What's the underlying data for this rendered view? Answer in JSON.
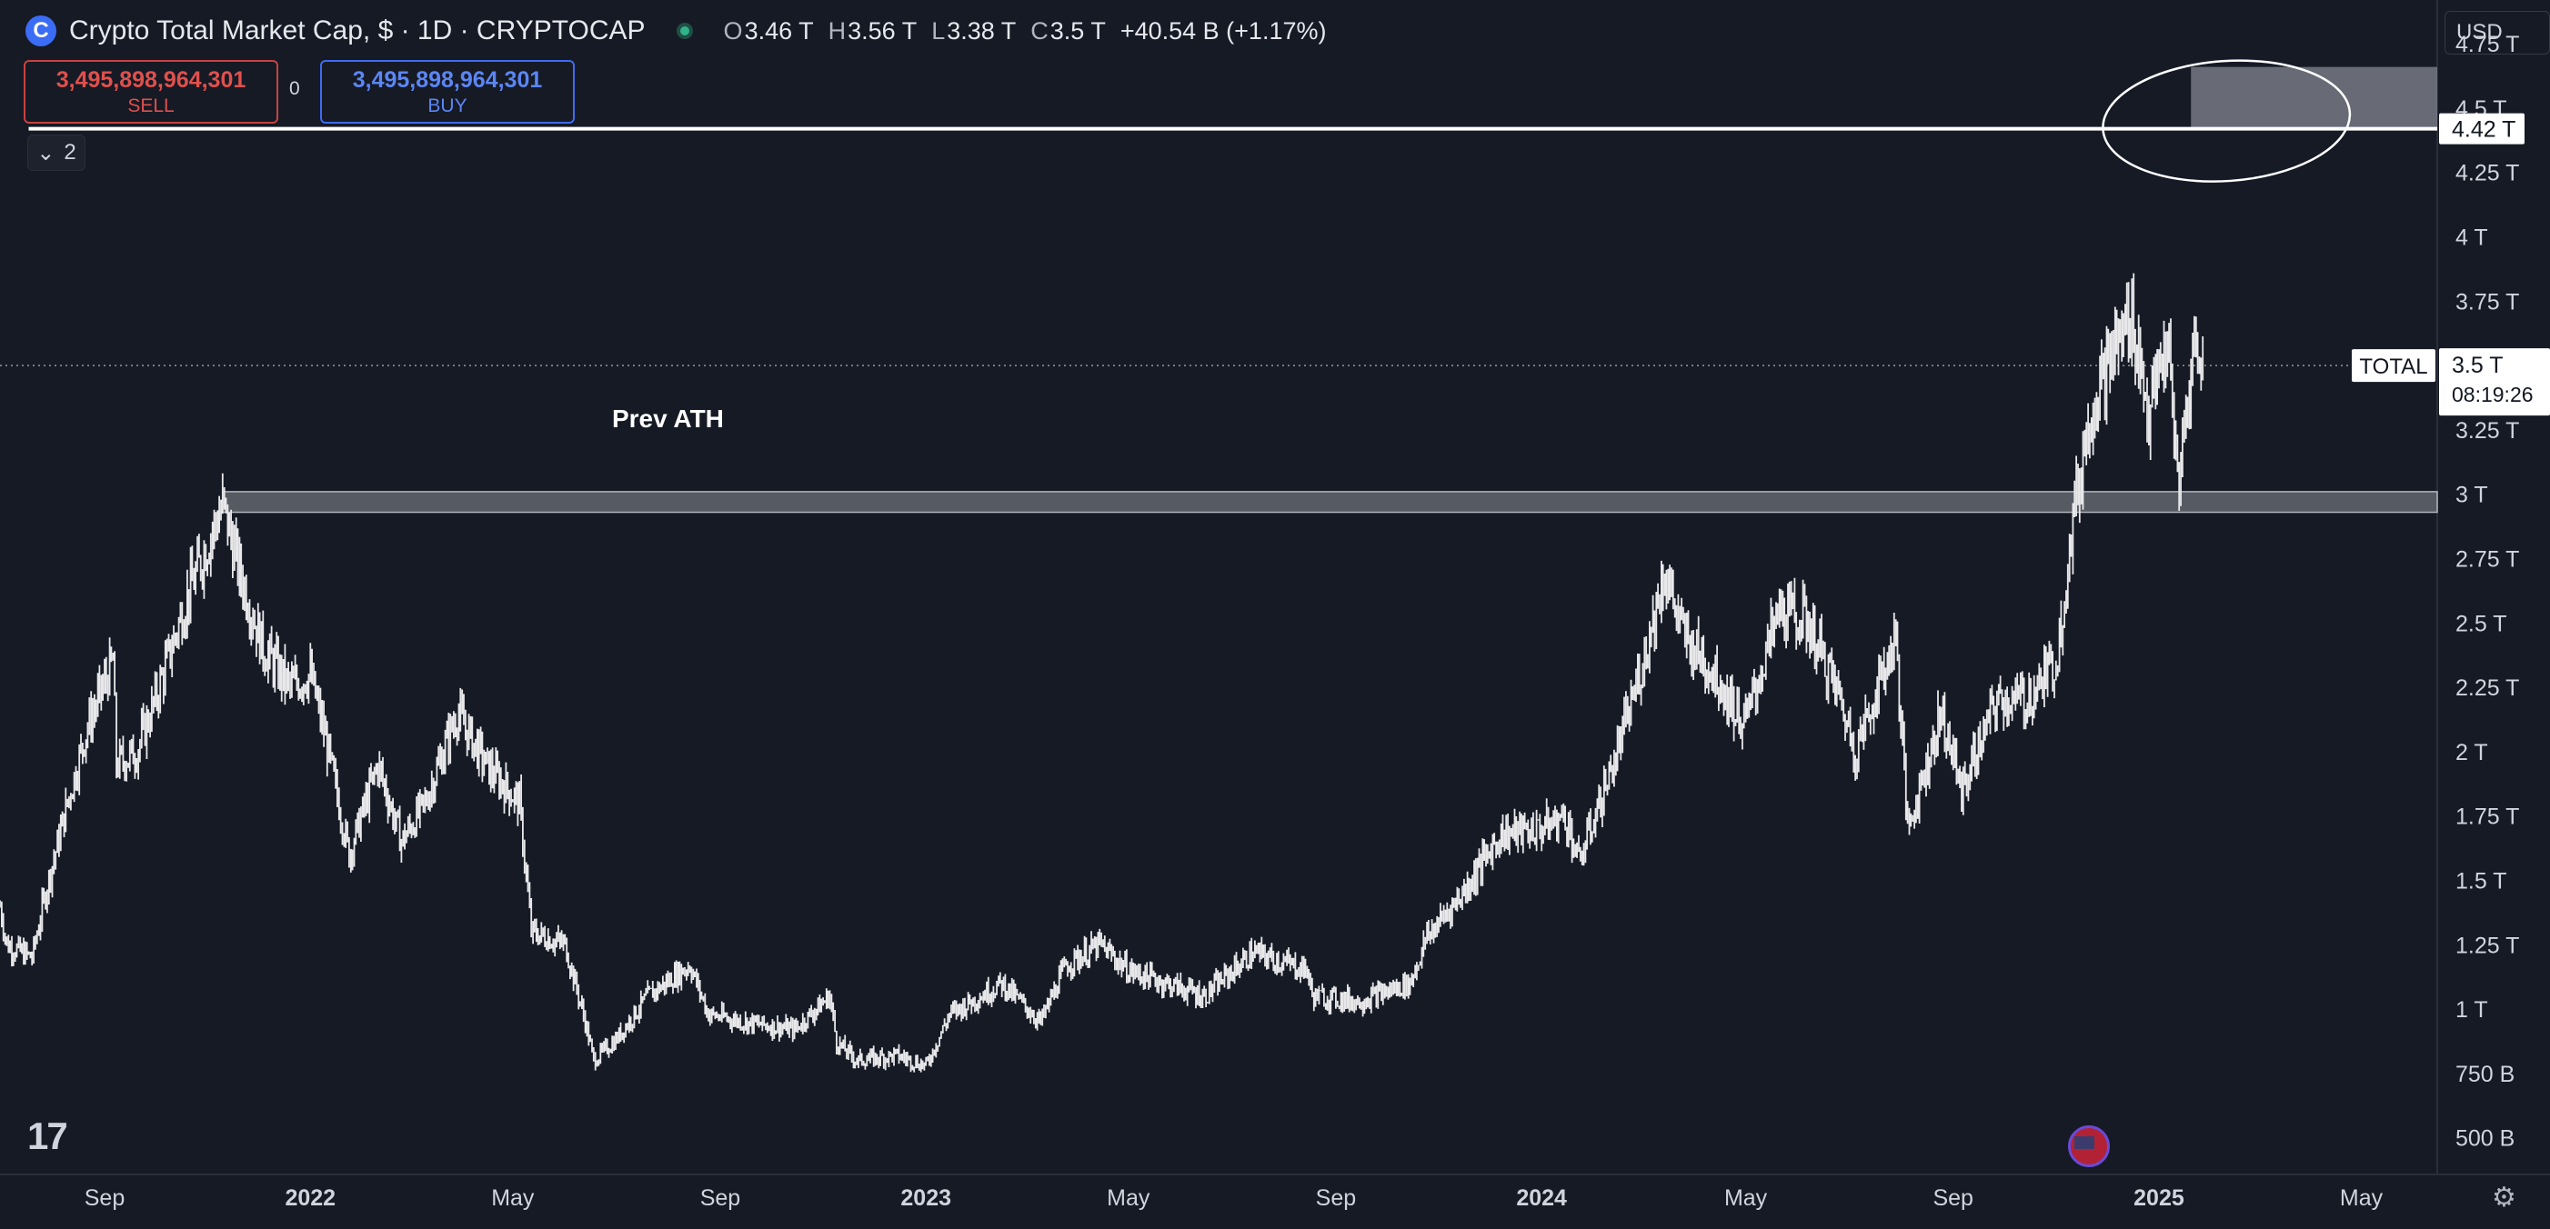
{
  "header": {
    "title": "Crypto Total Market Cap, $ · 1D · CRYPTOCAP",
    "ohlc": {
      "o_key": "O",
      "o_val": "3.46 T",
      "h_key": "H",
      "h_val": "3.56 T",
      "l_key": "L",
      "l_val": "3.38 T",
      "c_key": "C",
      "c_val": "3.5 T",
      "change": "+40.54 B (+1.17%)"
    }
  },
  "trade": {
    "sell_price": "3,495,898,964,301",
    "sell_label": "SELL",
    "buy_price": "3,495,898,964,301",
    "buy_label": "BUY",
    "spread": "0"
  },
  "indicators_toggle": {
    "count": "2"
  },
  "currency_selector": "USD",
  "colors": {
    "background": "#161a25",
    "price_line": "#ffffff",
    "sell": "#e0504c",
    "buy": "#5b86f5",
    "zone": "#8c8f98"
  },
  "chart_data": {
    "type": "candlestick",
    "title": "Crypto Total Market Cap",
    "symbol": "TOTAL",
    "interval": "1D",
    "y_unit": "USD",
    "y_range": [
      400000000000.0,
      4920000000000.0
    ],
    "y_ticks": [
      {
        "value": 500000000000.0,
        "label": "500 B"
      },
      {
        "value": 750000000000.0,
        "label": "750 B"
      },
      {
        "value": 1000000000000.0,
        "label": "1 T"
      },
      {
        "value": 1250000000000.0,
        "label": "1.25 T"
      },
      {
        "value": 1500000000000.0,
        "label": "1.5 T"
      },
      {
        "value": 1750000000000.0,
        "label": "1.75 T"
      },
      {
        "value": 2000000000000.0,
        "label": "2 T"
      },
      {
        "value": 2250000000000.0,
        "label": "2.25 T"
      },
      {
        "value": 2500000000000.0,
        "label": "2.5 T"
      },
      {
        "value": 2750000000000.0,
        "label": "2.75 T"
      },
      {
        "value": 3000000000000.0,
        "label": "3 T"
      },
      {
        "value": 3250000000000.0,
        "label": "3.25 T"
      },
      {
        "value": 3750000000000.0,
        "label": "3.75 T"
      },
      {
        "value": 4000000000000.0,
        "label": "4 T"
      },
      {
        "value": 4250000000000.0,
        "label": "4.25 T"
      },
      {
        "value": 4500000000000.0,
        "label": "4.5 T"
      },
      {
        "value": 4750000000000.0,
        "label": "4.75 T"
      }
    ],
    "x_range": [
      "2021-07-01",
      "2025-06-15"
    ],
    "x_ticks": [
      {
        "date": "2021-09-01",
        "label": "Sep",
        "bold": false
      },
      {
        "date": "2022-01-01",
        "label": "2022",
        "bold": true
      },
      {
        "date": "2022-05-01",
        "label": "May",
        "bold": false
      },
      {
        "date": "2022-09-01",
        "label": "Sep",
        "bold": false
      },
      {
        "date": "2023-01-01",
        "label": "2023",
        "bold": true
      },
      {
        "date": "2023-05-01",
        "label": "May",
        "bold": false
      },
      {
        "date": "2023-09-01",
        "label": "Sep",
        "bold": false
      },
      {
        "date": "2024-01-01",
        "label": "2024",
        "bold": true
      },
      {
        "date": "2024-05-01",
        "label": "May",
        "bold": false
      },
      {
        "date": "2024-09-01",
        "label": "Sep",
        "bold": false
      },
      {
        "date": "2025-01-01",
        "label": "2025",
        "bold": true
      },
      {
        "date": "2025-05-01",
        "label": "May",
        "bold": false
      }
    ],
    "price_path": [
      [
        "2021-07-01",
        1400000000000.0
      ],
      [
        "2021-07-05",
        1250000000000.0
      ],
      [
        "2021-07-20",
        1200000000000.0
      ],
      [
        "2021-07-28",
        1450000000000.0
      ],
      [
        "2021-08-10",
        1800000000000.0
      ],
      [
        "2021-08-22",
        2100000000000.0
      ],
      [
        "2021-09-06",
        2350000000000.0
      ],
      [
        "2021-09-08",
        1950000000000.0
      ],
      [
        "2021-09-20",
        2000000000000.0
      ],
      [
        "2021-10-01",
        2200000000000.0
      ],
      [
        "2021-10-20",
        2600000000000.0
      ],
      [
        "2021-11-10",
        2960000000000.0
      ],
      [
        "2021-11-20",
        2700000000000.0
      ],
      [
        "2021-12-04",
        2400000000000.0
      ],
      [
        "2021-12-20",
        2250000000000.0
      ],
      [
        "2022-01-01",
        2300000000000.0
      ],
      [
        "2022-01-10",
        2050000000000.0
      ],
      [
        "2022-01-24",
        1600000000000.0
      ],
      [
        "2022-02-10",
        1950000000000.0
      ],
      [
        "2022-02-24",
        1650000000000.0
      ],
      [
        "2022-03-10",
        1800000000000.0
      ],
      [
        "2022-03-29",
        2150000000000.0
      ],
      [
        "2022-04-15",
        1950000000000.0
      ],
      [
        "2022-05-05",
        1800000000000.0
      ],
      [
        "2022-05-12",
        1300000000000.0
      ],
      [
        "2022-06-01",
        1250000000000.0
      ],
      [
        "2022-06-13",
        950000000000.0
      ],
      [
        "2022-06-18",
        800000000000.0
      ],
      [
        "2022-07-01",
        880000000000.0
      ],
      [
        "2022-07-20",
        1050000000000.0
      ],
      [
        "2022-08-14",
        1170000000000.0
      ],
      [
        "2022-08-25",
        980000000000.0
      ],
      [
        "2022-09-15",
        950000000000.0
      ],
      [
        "2022-10-15",
        920000000000.0
      ],
      [
        "2022-11-05",
        1050000000000.0
      ],
      [
        "2022-11-09",
        870000000000.0
      ],
      [
        "2022-11-21",
        800000000000.0
      ],
      [
        "2022-12-15",
        820000000000.0
      ],
      [
        "2023-01-01",
        780000000000.0
      ],
      [
        "2023-01-15",
        980000000000.0
      ],
      [
        "2023-02-15",
        1100000000000.0
      ],
      [
        "2023-03-10",
        950000000000.0
      ],
      [
        "2023-03-25",
        1170000000000.0
      ],
      [
        "2023-04-14",
        1250000000000.0
      ],
      [
        "2023-05-01",
        1150000000000.0
      ],
      [
        "2023-06-15",
        1050000000000.0
      ],
      [
        "2023-07-14",
        1220000000000.0
      ],
      [
        "2023-08-15",
        1150000000000.0
      ],
      [
        "2023-08-18",
        1050000000000.0
      ],
      [
        "2023-09-15",
        1030000000000.0
      ],
      [
        "2023-10-15",
        1100000000000.0
      ],
      [
        "2023-10-25",
        1280000000000.0
      ],
      [
        "2023-11-15",
        1450000000000.0
      ],
      [
        "2023-12-08",
        1680000000000.0
      ],
      [
        "2024-01-01",
        1700000000000.0
      ],
      [
        "2024-01-15",
        1750000000000.0
      ],
      [
        "2024-01-23",
        1570000000000.0
      ],
      [
        "2024-02-15",
        2000000000000.0
      ],
      [
        "2024-03-01",
        2350000000000.0
      ],
      [
        "2024-03-14",
        2700000000000.0
      ],
      [
        "2024-03-25",
        2450000000000.0
      ],
      [
        "2024-04-13",
        2300000000000.0
      ],
      [
        "2024-04-30",
        2100000000000.0
      ],
      [
        "2024-05-21",
        2550000000000.0
      ],
      [
        "2024-06-07",
        2500000000000.0
      ],
      [
        "2024-06-25",
        2220000000000.0
      ],
      [
        "2024-07-05",
        2000000000000.0
      ],
      [
        "2024-07-29",
        2450000000000.0
      ],
      [
        "2024-08-05",
        1700000000000.0
      ],
      [
        "2024-08-25",
        2150000000000.0
      ],
      [
        "2024-09-06",
        1850000000000.0
      ],
      [
        "2024-09-27",
        2200000000000.0
      ],
      [
        "2024-10-15",
        2200000000000.0
      ],
      [
        "2024-11-01",
        2350000000000.0
      ],
      [
        "2024-11-12",
        2950000000000.0
      ],
      [
        "2024-11-22",
        3350000000000.0
      ],
      [
        "2024-12-05",
        3550000000000.0
      ],
      [
        "2024-12-16",
        3700000000000.0
      ],
      [
        "2024-12-26",
        3300000000000.0
      ],
      [
        "2025-01-06",
        3600000000000.0
      ],
      [
        "2025-01-10",
        3200000000000.0
      ],
      [
        "2025-01-13",
        3050000000000.0
      ],
      [
        "2025-01-22",
        3600000000000.0
      ],
      [
        "2025-01-27",
        3500000000000.0
      ]
    ],
    "current_value": 3500000000000.0,
    "current_label": "3.5 T",
    "symbol_label": "TOTAL",
    "countdown": "08:19:26",
    "drawings": {
      "horizontal_line": {
        "value": 4420000000000.0,
        "label": "4.42 T",
        "start": "2021-07-18"
      },
      "prev_ath_zone": {
        "from": "2021-11-10",
        "to_edge": true,
        "low": 2930000000000.0,
        "high": 3010000000000.0,
        "label": "Prev ATH",
        "label_date": "2022-08-01",
        "label_value": 3260000000000.0
      },
      "target_zone": {
        "from": "2025-01-20",
        "to_edge": true,
        "low": 4420000000000.0,
        "high": 4660000000000.0
      },
      "circle_annotation": {
        "center_date": "2025-02-10",
        "center_value": 4450000000000.0
      }
    }
  }
}
